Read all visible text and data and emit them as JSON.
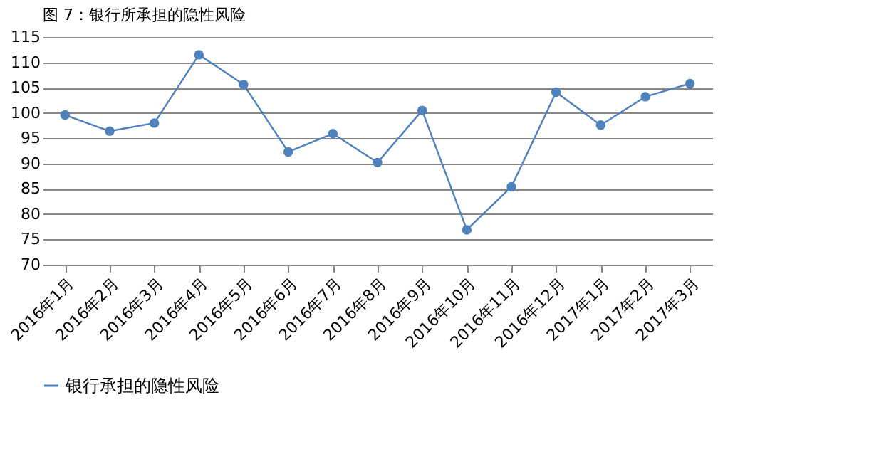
{
  "chart_data": {
    "type": "line",
    "title": "图 7：银行所承担的隐性风险",
    "categories": [
      "2016年1月",
      "2016年2月",
      "2016年3月",
      "2016年4月",
      "2016年5月",
      "2016年6月",
      "2016年7月",
      "2016年8月",
      "2016年9月",
      "2016年10月",
      "2016年11月",
      "2016年12月",
      "2017年1月",
      "2017年2月",
      "2017年3月"
    ],
    "series": [
      {
        "name": "银行承担的隐性风险",
        "color": "#4f81bd",
        "values": [
          99.6,
          96.4,
          98.0,
          111.5,
          105.6,
          92.3,
          95.9,
          90.2,
          100.5,
          76.9,
          85.4,
          104.1,
          97.6,
          103.2,
          105.8
        ]
      }
    ],
    "ylim": [
      70,
      115
    ],
    "yticks": [
      70,
      75,
      80,
      85,
      90,
      95,
      100,
      105,
      110,
      115
    ],
    "grid": "y",
    "legend": "bottom",
    "marker": "circle",
    "line_style": "solid"
  }
}
